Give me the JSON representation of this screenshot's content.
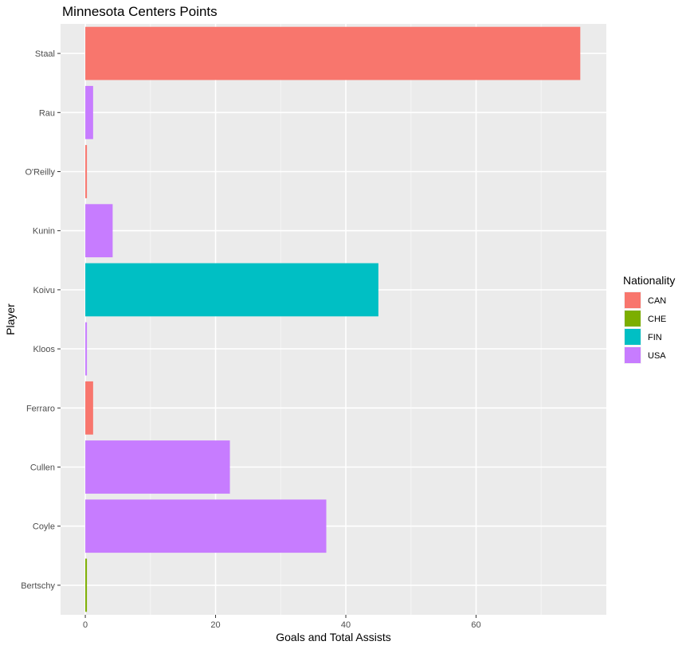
{
  "chart_data": {
    "type": "bar",
    "orientation": "horizontal",
    "title": "Minnesota Centers Points",
    "xlabel": "Goals and Total Assists",
    "ylabel": "Player",
    "xlim": [
      -3.8,
      80
    ],
    "x_ticks": [
      0,
      20,
      40,
      60
    ],
    "grid": true,
    "legend": {
      "title": "Nationality",
      "position": "right",
      "entries": [
        {
          "label": "CAN",
          "color": "#F8766D"
        },
        {
          "label": "CHE",
          "color": "#7CAE00"
        },
        {
          "label": "FIN",
          "color": "#00BFC4"
        },
        {
          "label": "USA",
          "color": "#C77CFF"
        }
      ]
    },
    "bars": [
      {
        "player": "Staal",
        "value": 76,
        "nationality": "CAN"
      },
      {
        "player": "Rau",
        "value": 1.2,
        "nationality": "USA"
      },
      {
        "player": "O'Reilly",
        "value": 0.25,
        "nationality": "CAN"
      },
      {
        "player": "Kunin",
        "value": 4.2,
        "nationality": "USA"
      },
      {
        "player": "Koivu",
        "value": 45,
        "nationality": "FIN"
      },
      {
        "player": "Kloos",
        "value": 0.25,
        "nationality": "USA"
      },
      {
        "player": "Ferraro",
        "value": 1.2,
        "nationality": "CAN"
      },
      {
        "player": "Cullen",
        "value": 22.2,
        "nationality": "USA"
      },
      {
        "player": "Coyle",
        "value": 37,
        "nationality": "USA"
      },
      {
        "player": "Bertschy",
        "value": 0.25,
        "nationality": "CHE"
      }
    ]
  }
}
